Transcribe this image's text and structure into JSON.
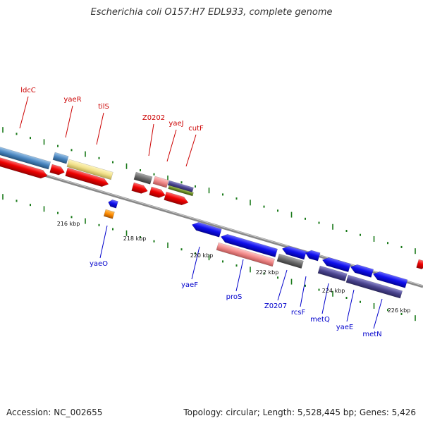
{
  "title": "Escherichia coli O157:H7 EDL933, complete genome",
  "footer": {
    "accession": "Accession: NC_002655",
    "summary": "Topology: circular; Length: 5,528,445 bp; Genes: 5,426"
  },
  "colors": {
    "forward_label": "#cc0000",
    "reverse_label": "#0000cc",
    "tick_green": "#1a7a1a",
    "backbone": "#888888"
  },
  "ticks": [
    {
      "label": "216 kbp"
    },
    {
      "label": "218 kbp"
    },
    {
      "label": "220 kbp"
    },
    {
      "label": "222 kbp"
    },
    {
      "label": "224 kbp"
    },
    {
      "label": "226 kbp"
    }
  ],
  "genes_top": [
    {
      "name": "ldcC"
    },
    {
      "name": "yaeR"
    },
    {
      "name": "tilS"
    },
    {
      "name": "Z0202"
    },
    {
      "name": "yaeJ"
    },
    {
      "name": "cutF"
    }
  ],
  "genes_bottom": [
    {
      "name": "yaeO"
    },
    {
      "name": "yaeF"
    },
    {
      "name": "proS"
    },
    {
      "name": "Z0207"
    },
    {
      "name": "rcsF"
    },
    {
      "name": "metQ"
    },
    {
      "name": "yaeE"
    },
    {
      "name": "metN"
    }
  ]
}
